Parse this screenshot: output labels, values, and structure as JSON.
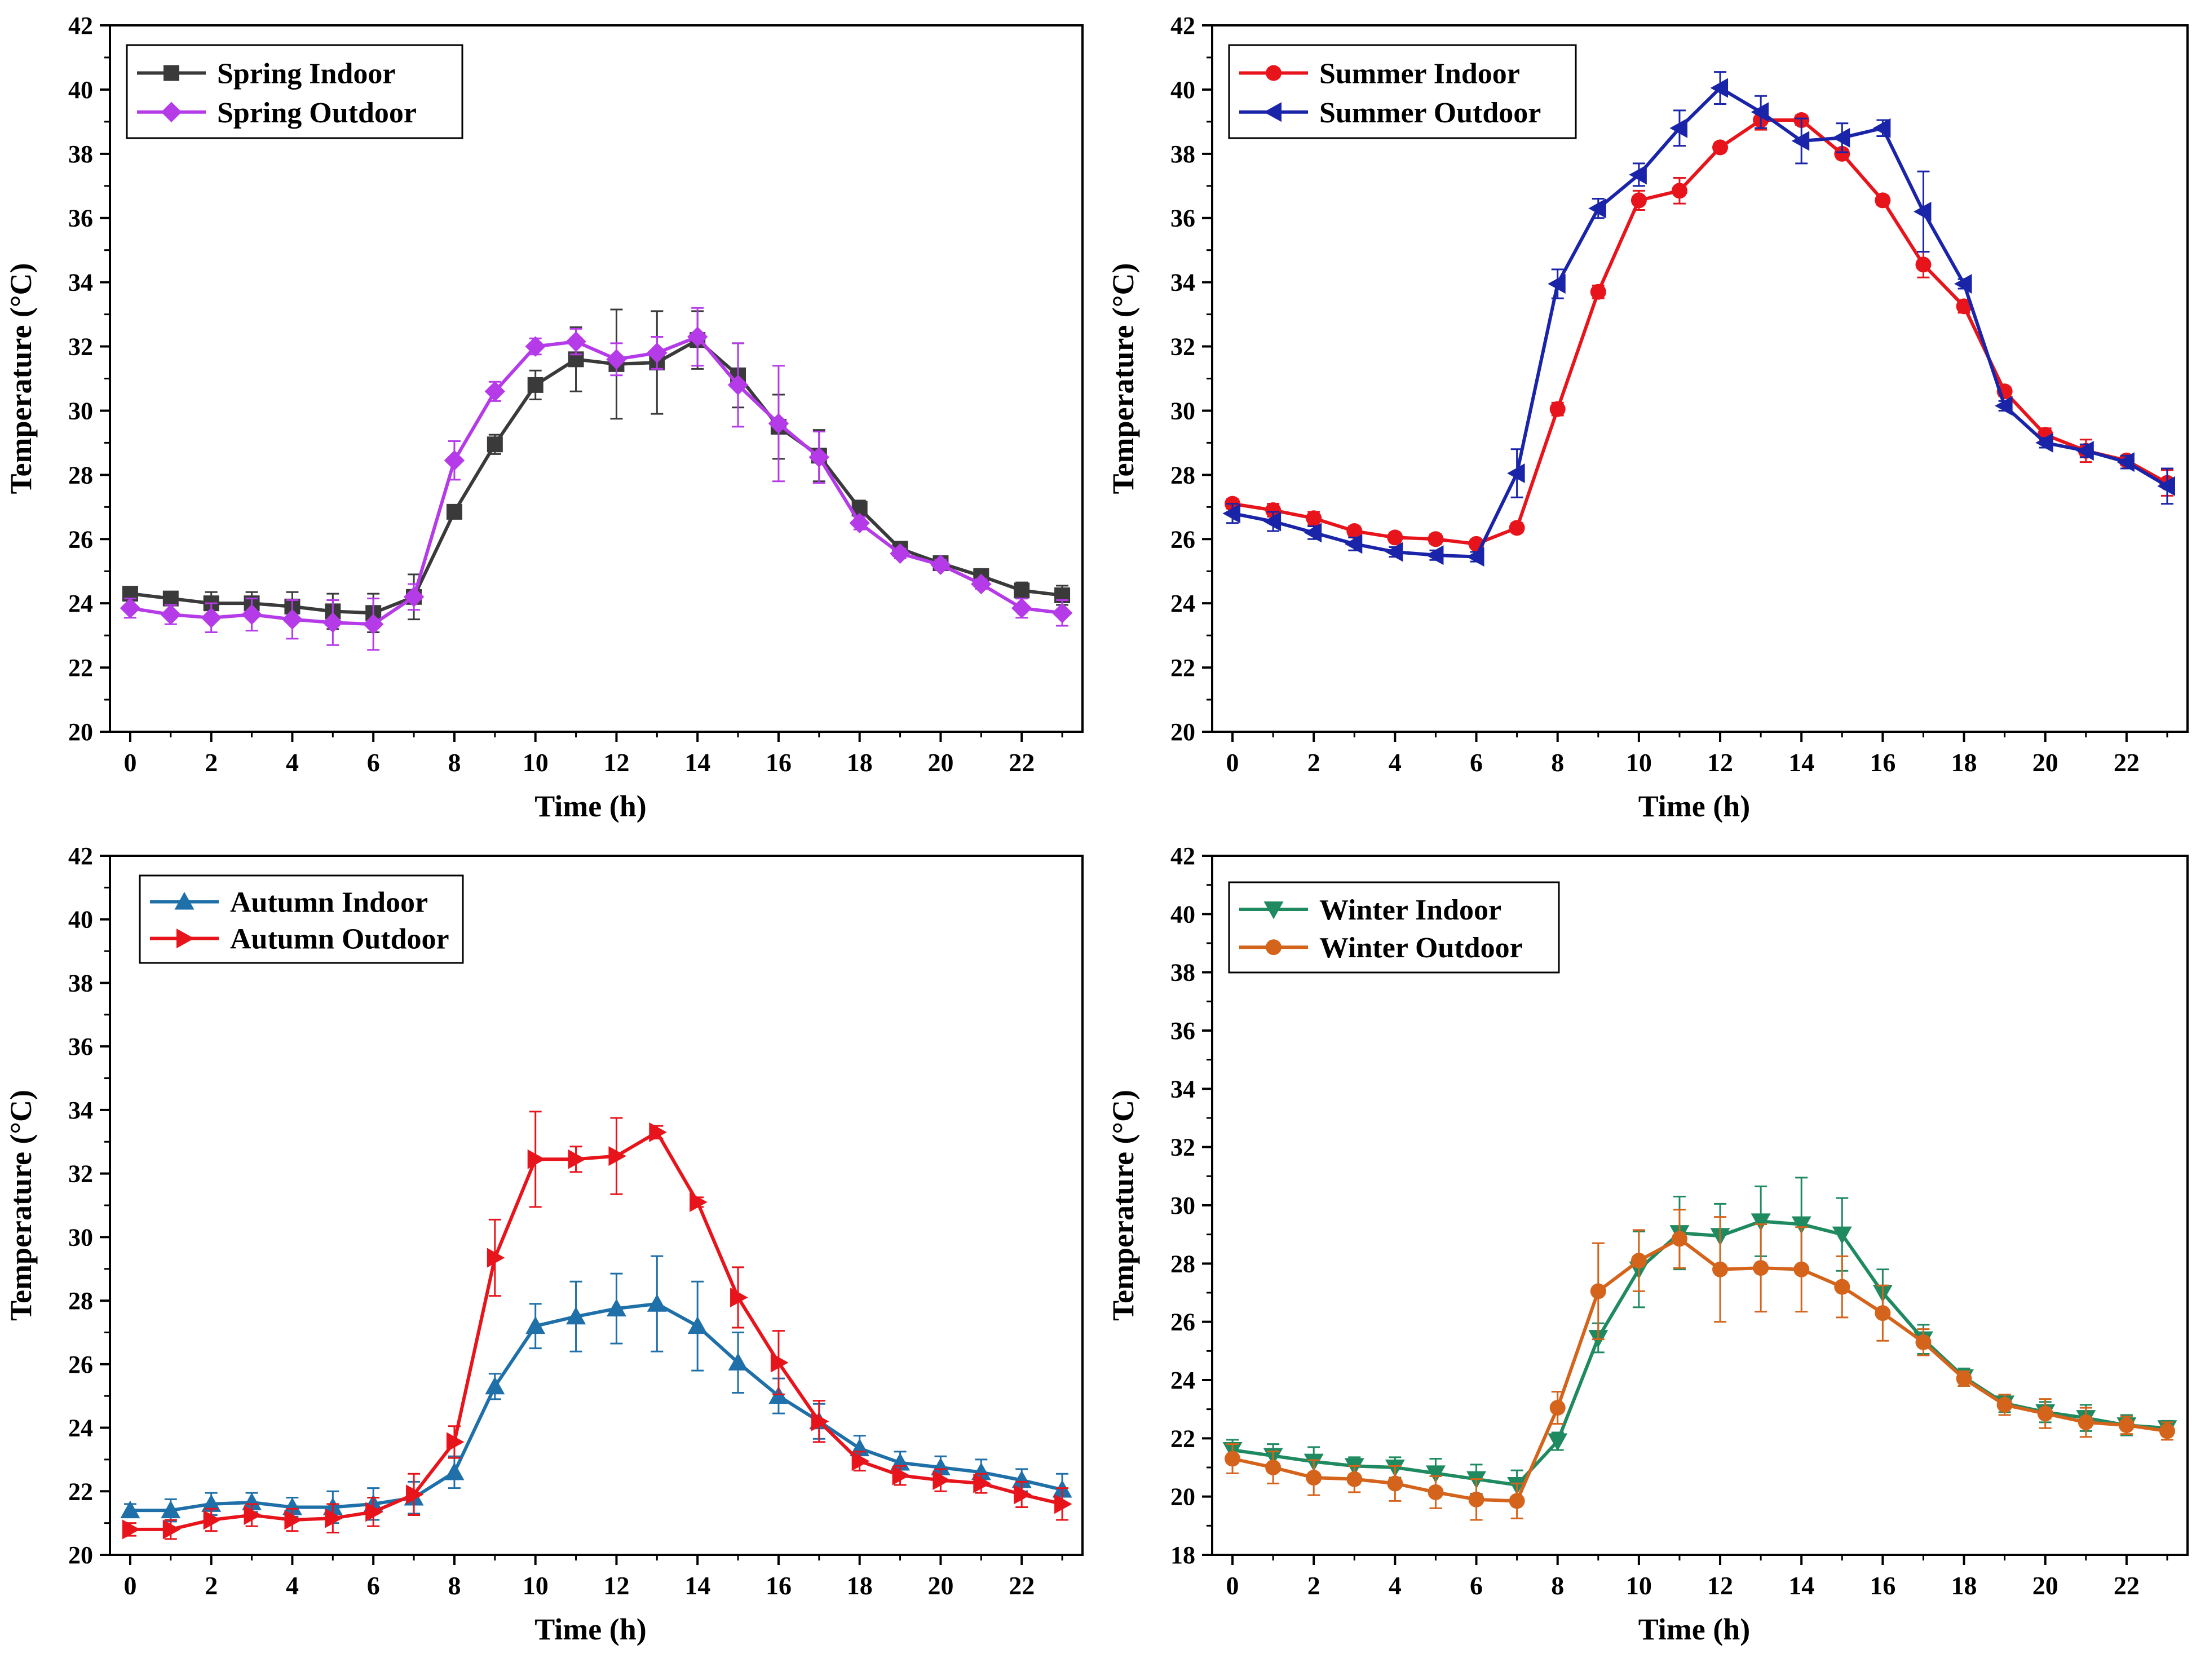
{
  "chart_data": [
    {
      "type": "line",
      "panel": "top-left",
      "xlabel": "Time (h)",
      "ylabel": "Temperature (°C)",
      "xlim": [
        -0.5,
        23.5
      ],
      "ylim": [
        20,
        42
      ],
      "xticks": [
        0,
        2,
        4,
        6,
        8,
        10,
        12,
        14,
        16,
        18,
        20,
        22
      ],
      "yticks": [
        20,
        22,
        24,
        26,
        28,
        30,
        32,
        34,
        36,
        38,
        40,
        42
      ],
      "legend_position": "top-left",
      "x": [
        0,
        1,
        2,
        3,
        4,
        5,
        6,
        7,
        8,
        9,
        10,
        11,
        12,
        13,
        14,
        15,
        16,
        17,
        18,
        19,
        20,
        21,
        22,
        23
      ],
      "series": [
        {
          "name": "Spring Indoor",
          "color": "#3a3a3a",
          "marker": "square",
          "values": [
            24.3,
            24.15,
            24.0,
            24.0,
            23.9,
            23.75,
            23.7,
            24.2,
            26.85,
            28.95,
            30.8,
            31.6,
            31.45,
            31.5,
            32.2,
            31.1,
            29.5,
            28.6,
            26.95,
            25.7,
            25.25,
            24.85,
            24.4,
            24.25
          ],
          "errors": [
            0.2,
            0.15,
            0.35,
            0.35,
            0.45,
            0.55,
            0.6,
            0.7,
            0.2,
            0.3,
            0.45,
            1.0,
            1.7,
            1.6,
            0.9,
            1.0,
            1.0,
            0.8,
            0.25,
            0.15,
            0.15,
            0.15,
            0.25,
            0.3
          ]
        },
        {
          "name": "Spring Outdoor",
          "color": "#b53be8",
          "marker": "diamond",
          "values": [
            23.85,
            23.65,
            23.55,
            23.65,
            23.5,
            23.4,
            23.35,
            24.2,
            28.45,
            30.6,
            32.0,
            32.15,
            31.6,
            31.8,
            32.3,
            30.8,
            29.6,
            28.55,
            26.5,
            25.55,
            25.2,
            24.6,
            23.85,
            23.7
          ],
          "errors": [
            0.3,
            0.3,
            0.45,
            0.5,
            0.6,
            0.7,
            0.8,
            0.4,
            0.6,
            0.3,
            0.25,
            0.4,
            0.5,
            0.5,
            0.9,
            1.3,
            1.8,
            0.8,
            0.2,
            0.15,
            0.15,
            0.15,
            0.3,
            0.4
          ]
        }
      ]
    },
    {
      "type": "line",
      "panel": "top-right",
      "xlabel": "Time (h)",
      "ylabel": "Temperature (°C)",
      "xlim": [
        -0.5,
        23.5
      ],
      "ylim": [
        20,
        42
      ],
      "xticks": [
        0,
        2,
        4,
        6,
        8,
        10,
        12,
        14,
        16,
        18,
        20,
        22
      ],
      "yticks": [
        20,
        22,
        24,
        26,
        28,
        30,
        32,
        34,
        36,
        38,
        40,
        42
      ],
      "legend_position": "top-left",
      "x": [
        0,
        1,
        2,
        3,
        4,
        5,
        6,
        7,
        8,
        9,
        10,
        11,
        12,
        13,
        14,
        15,
        16,
        17,
        18,
        19,
        20,
        21,
        22,
        23
      ],
      "series": [
        {
          "name": "Summer Indoor",
          "color": "#e8141c",
          "marker": "circle",
          "values": [
            27.1,
            26.9,
            26.65,
            26.25,
            26.05,
            26.0,
            25.85,
            26.35,
            30.05,
            33.7,
            36.55,
            36.85,
            38.2,
            39.05,
            39.05,
            38.0,
            36.55,
            34.55,
            33.25,
            30.6,
            29.25,
            28.75,
            28.45,
            27.75
          ],
          "errors": [
            0.15,
            0.2,
            0.2,
            0.15,
            0.15,
            0.15,
            0.1,
            0.15,
            0.2,
            0.2,
            0.3,
            0.4,
            0.15,
            0.3,
            0.15,
            0.15,
            0.15,
            0.4,
            0.2,
            0.15,
            0.2,
            0.35,
            0.15,
            0.4
          ]
        },
        {
          "name": "Summer Outdoor",
          "color": "#1a24a8",
          "marker": "triangle-left",
          "values": [
            26.8,
            26.55,
            26.2,
            25.85,
            25.6,
            25.5,
            25.45,
            28.05,
            33.95,
            36.3,
            37.35,
            38.8,
            40.05,
            39.3,
            38.4,
            38.5,
            38.8,
            36.2,
            33.95,
            30.15,
            29.0,
            28.75,
            28.4,
            27.65
          ],
          "errors": [
            0.3,
            0.3,
            0.2,
            0.2,
            0.15,
            0.15,
            0.15,
            0.75,
            0.45,
            0.3,
            0.35,
            0.55,
            0.5,
            0.5,
            0.7,
            0.45,
            0.25,
            1.25,
            0.15,
            0.15,
            0.15,
            0.2,
            0.2,
            0.55
          ]
        }
      ]
    },
    {
      "type": "line",
      "panel": "bottom-left",
      "xlabel": "Time (h)",
      "ylabel": "Temperature (°C)",
      "xlim": [
        -0.5,
        23.5
      ],
      "ylim": [
        20,
        42
      ],
      "xticks": [
        0,
        2,
        4,
        6,
        8,
        10,
        12,
        14,
        16,
        18,
        20,
        22
      ],
      "yticks": [
        20,
        22,
        24,
        26,
        28,
        30,
        32,
        34,
        36,
        38,
        40,
        42
      ],
      "legend_position": "top-left",
      "x": [
        0,
        1,
        2,
        3,
        4,
        5,
        6,
        7,
        8,
        9,
        10,
        11,
        12,
        13,
        14,
        15,
        16,
        17,
        18,
        19,
        20,
        21,
        22,
        23
      ],
      "series": [
        {
          "name": "Autumn Indoor",
          "color": "#1f6fa8",
          "marker": "triangle-up",
          "values": [
            21.4,
            21.4,
            21.6,
            21.65,
            21.5,
            21.5,
            21.6,
            21.8,
            22.6,
            25.3,
            27.2,
            27.5,
            27.75,
            27.9,
            27.2,
            26.05,
            25.0,
            24.2,
            23.35,
            22.9,
            22.75,
            22.6,
            22.35,
            22.05
          ],
          "errors": [
            0.2,
            0.35,
            0.35,
            0.3,
            0.3,
            0.5,
            0.5,
            0.5,
            0.5,
            0.4,
            0.7,
            1.1,
            1.1,
            1.5,
            1.4,
            0.95,
            0.55,
            0.55,
            0.4,
            0.35,
            0.35,
            0.4,
            0.35,
            0.5
          ]
        },
        {
          "name": "Autumn Outdoor",
          "color": "#e8141c",
          "marker": "triangle-right",
          "values": [
            20.8,
            20.8,
            21.1,
            21.25,
            21.1,
            21.15,
            21.35,
            21.9,
            23.55,
            29.35,
            32.45,
            32.45,
            32.55,
            33.3,
            31.1,
            28.1,
            26.05,
            24.2,
            22.95,
            22.5,
            22.35,
            22.25,
            21.9,
            21.6
          ],
          "errors": [
            0.2,
            0.3,
            0.35,
            0.35,
            0.35,
            0.45,
            0.45,
            0.65,
            0.5,
            1.2,
            1.5,
            0.4,
            1.2,
            0.2,
            0.15,
            0.95,
            1.0,
            0.65,
            0.3,
            0.3,
            0.35,
            0.3,
            0.4,
            0.5
          ]
        }
      ]
    },
    {
      "type": "line",
      "panel": "bottom-right",
      "xlabel": "Time (h)",
      "ylabel": "Temperature (°C)",
      "xlim": [
        -0.5,
        23.5
      ],
      "ylim": [
        18,
        42
      ],
      "xticks": [
        0,
        2,
        4,
        6,
        8,
        10,
        12,
        14,
        16,
        18,
        20,
        22
      ],
      "yticks": [
        18,
        20,
        22,
        24,
        26,
        28,
        30,
        32,
        34,
        36,
        38,
        40,
        42
      ],
      "legend_position": "top-left",
      "x": [
        0,
        1,
        2,
        3,
        4,
        5,
        6,
        7,
        8,
        9,
        10,
        11,
        12,
        13,
        14,
        15,
        16,
        17,
        18,
        19,
        20,
        21,
        22,
        23
      ],
      "series": [
        {
          "name": "Winter Indoor",
          "color": "#1f8a60",
          "marker": "triangle-down",
          "values": [
            21.6,
            21.4,
            21.2,
            21.05,
            21.0,
            20.8,
            20.6,
            20.4,
            21.9,
            25.45,
            27.8,
            29.05,
            28.95,
            29.45,
            29.35,
            29.0,
            27.0,
            25.4,
            24.1,
            23.2,
            22.9,
            22.7,
            22.45,
            22.35
          ],
          "errors": [
            0.35,
            0.4,
            0.5,
            0.3,
            0.35,
            0.5,
            0.5,
            0.5,
            0.3,
            0.5,
            1.3,
            1.25,
            1.1,
            1.2,
            1.6,
            1.25,
            0.8,
            0.5,
            0.3,
            0.3,
            0.35,
            0.45,
            0.35,
            0.25
          ]
        },
        {
          "name": "Winter Outdoor",
          "color": "#d4641c",
          "marker": "circle",
          "values": [
            21.3,
            21.0,
            20.65,
            20.6,
            20.45,
            20.15,
            19.9,
            19.85,
            23.05,
            27.05,
            28.1,
            28.85,
            27.8,
            27.85,
            27.8,
            27.2,
            26.3,
            25.3,
            24.05,
            23.15,
            22.85,
            22.55,
            22.45,
            22.25
          ],
          "errors": [
            0.5,
            0.55,
            0.6,
            0.45,
            0.6,
            0.55,
            0.7,
            0.6,
            0.55,
            1.65,
            1.05,
            1.0,
            1.8,
            1.5,
            1.45,
            1.05,
            0.95,
            0.45,
            0.25,
            0.35,
            0.5,
            0.5,
            0.3,
            0.3
          ]
        }
      ]
    }
  ]
}
